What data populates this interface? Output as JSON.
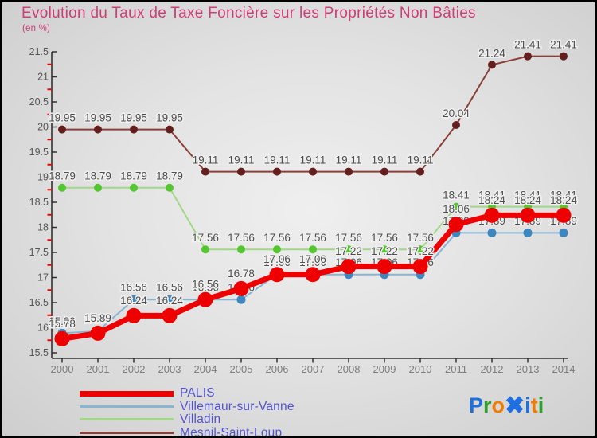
{
  "title": "Evolution du Taux de Taxe Foncière sur les Propriétés Non Bâties",
  "subtitle": "(en %)",
  "colors": {
    "title": "#cf3d74",
    "legend_text": "#5353d1",
    "axis": "#333333",
    "minor_tick": "#ee0000",
    "ytick_label": "#555555",
    "xtick_label": "#7d7d7d",
    "point_label": "#4d4d4d",
    "label_halo": "#f0f0f0"
  },
  "chart_data": {
    "type": "line",
    "x": [
      2000,
      2001,
      2002,
      2003,
      2004,
      2005,
      2006,
      2007,
      2008,
      2009,
      2010,
      2011,
      2012,
      2013,
      2014
    ],
    "xtick_labels": [
      "2000",
      "2001",
      "2002",
      "2003",
      "2004",
      "2005",
      "2006",
      "2007",
      "2008",
      "2009",
      "2010",
      "2011",
      "2012",
      "2013",
      "2014"
    ],
    "ylim": [
      15.5,
      21.5
    ],
    "ytick_step": 0.5,
    "ytick_labels": [
      "15.5",
      "16",
      "16.5",
      "17",
      "17.5",
      "18",
      "18.5",
      "19",
      "19.5",
      "20",
      "20.5",
      "21",
      "21.5"
    ],
    "grid": false,
    "legend_position": "bottom-left",
    "point_labels": "all points labeled with value to 2 decimals",
    "series": [
      {
        "name": "PALIS",
        "color": "#ee0000",
        "marker_color": "#ee0000",
        "line_width": 7,
        "marker_radius": 9.5,
        "values": [
          15.78,
          15.89,
          16.24,
          16.24,
          16.56,
          16.78,
          17.06,
          17.06,
          17.22,
          17.22,
          17.22,
          18.06,
          18.24,
          18.24,
          18.24
        ]
      },
      {
        "name": "Villemaur-sur-Vanne",
        "color": "#8ab4d2",
        "marker_color": "#3e86be",
        "line_width": 2,
        "marker_radius": 5.5,
        "values": [
          15.89,
          15.93,
          16.56,
          16.56,
          16.56,
          16.56,
          17.06,
          17.06,
          17.06,
          17.06,
          17.06,
          17.89,
          17.89,
          17.89,
          17.89
        ]
      },
      {
        "name": "Villadin",
        "color": "#a2d787",
        "marker_color": "#53c630",
        "line_width": 2,
        "marker_radius": 5,
        "values": [
          18.79,
          18.79,
          18.79,
          18.79,
          17.56,
          17.56,
          17.56,
          17.56,
          17.56,
          17.56,
          17.56,
          18.41,
          18.41,
          18.41,
          18.41
        ]
      },
      {
        "name": "Mesnil-Saint-Loup",
        "color": "#8a4038",
        "marker_color": "#641e1e",
        "line_width": 2,
        "marker_radius": 5,
        "values": [
          19.95,
          19.95,
          19.95,
          19.95,
          19.11,
          19.11,
          19.11,
          19.11,
          19.11,
          19.11,
          19.11,
          20.04,
          21.24,
          21.41,
          21.41
        ]
      }
    ]
  },
  "logo": {
    "name": "Proxiti",
    "letters": [
      {
        "char": "P",
        "color": "#1f6fe0"
      },
      {
        "char": "r",
        "color": "#2ea02e"
      },
      {
        "char": "o",
        "color": "#f07d00"
      },
      {
        "char": "✖",
        "color": "#1f6fe0"
      },
      {
        "char": "i",
        "color": "#1f6fe0"
      },
      {
        "char": "t",
        "color": "#f07d00"
      },
      {
        "char": "i",
        "color": "#2ea02e"
      }
    ]
  }
}
